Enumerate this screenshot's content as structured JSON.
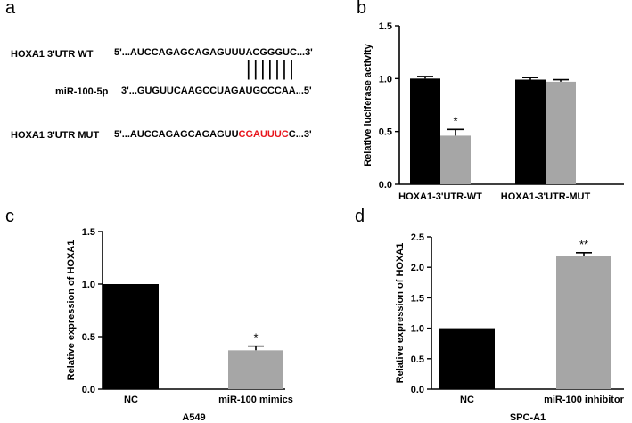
{
  "panel_a": {
    "letter": "a",
    "wt_label": "HOXA1 3'UTR WT",
    "wt_seq": "5'...AUCCAGAGCAGAGUUUACGGGUC...3'",
    "pairing": "|||||||",
    "mir_label": "miR-100-5p",
    "mir_seq": "3'...GUGUUCAAGCCUAGAUGCCCAA...5'",
    "mut_label": "HOXA1 3'UTR MUT",
    "mut_seq_pre": "5'...AUCCAGAGCAGAGUU",
    "mut_seq_mut": "CGAUUUC",
    "mut_seq_post": "C...3'",
    "mutation_color": "#e8141b"
  },
  "chart_data": [
    {
      "panel": "b",
      "type": "bar",
      "categories": [
        "HOXA1-3'UTR-WT",
        "HOXA1-3'UTR-MUT"
      ],
      "series": [
        {
          "color": "#000000",
          "values": [
            1.0,
            0.99
          ],
          "errors": [
            0.02,
            0.02
          ]
        },
        {
          "color": "#a6a6a6",
          "values": [
            0.46,
            0.97
          ],
          "errors": [
            0.06,
            0.02
          ]
        }
      ],
      "annotations": [
        {
          "category": 0,
          "series": 1,
          "text": "*"
        }
      ],
      "ylabel": "Relative luciferase activity",
      "xlabel": "",
      "ylim": [
        0,
        1.5
      ],
      "yticks": [
        "0.0",
        "0.5",
        "1.0",
        "1.5"
      ]
    },
    {
      "panel": "c",
      "type": "bar",
      "categories": [
        "NC",
        "miR-100 mimics"
      ],
      "values": [
        1.0,
        0.37
      ],
      "errors": [
        0,
        0.04
      ],
      "colors": [
        "#000000",
        "#a6a6a6"
      ],
      "annotations": [
        {
          "category": 1,
          "text": "*"
        }
      ],
      "ylabel": "Relative expression of HOXA1",
      "xlabel": "A549",
      "ylim": [
        0,
        1.5
      ],
      "yticks": [
        "0.0",
        "0.5",
        "1.0",
        "1.5"
      ]
    },
    {
      "panel": "d",
      "type": "bar",
      "categories": [
        "NC",
        "miR-100 inhibitor"
      ],
      "values": [
        1.0,
        2.18
      ],
      "errors": [
        0,
        0.06
      ],
      "colors": [
        "#000000",
        "#a6a6a6"
      ],
      "annotations": [
        {
          "category": 1,
          "text": "**"
        }
      ],
      "ylabel": "Relative expression of HOXA1",
      "xlabel": "SPC-A1",
      "ylim": [
        0,
        2.5
      ],
      "yticks": [
        "0.0",
        "0.5",
        "1.0",
        "1.5",
        "2.0",
        "2.5"
      ]
    }
  ]
}
